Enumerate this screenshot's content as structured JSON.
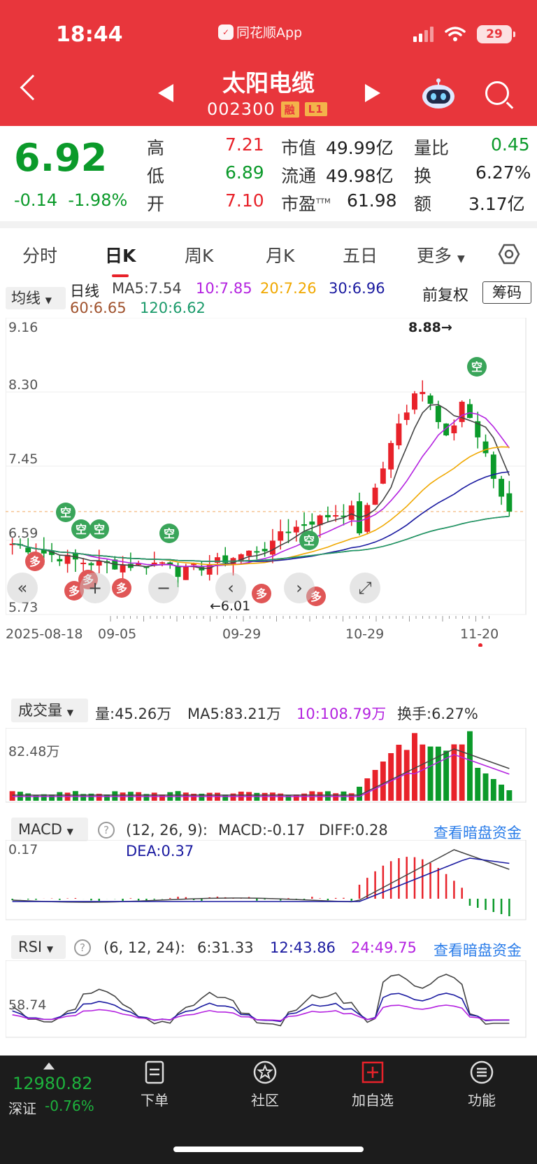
{
  "status_bar": {
    "time": "18:44",
    "app_label": "同花顺App",
    "battery": "29"
  },
  "header": {
    "name": "太阳电缆",
    "code": "002300",
    "tag_margin": "融",
    "tag_level": "L1"
  },
  "quote": {
    "price": "6.92",
    "change": "-0.14",
    "change_pct": "-1.98%",
    "high_label": "高",
    "high": "7.21",
    "low_label": "低",
    "low": "6.89",
    "open_label": "开",
    "open": "7.10",
    "mcap_label": "市值",
    "mcap": "49.99亿",
    "float_label": "流通",
    "float": "49.98亿",
    "pe_label": "市盈",
    "pe_sup": "TTM",
    "pe": "61.98",
    "vol_ratio_label": "量比",
    "vol_ratio": "0.45",
    "turnover_label": "换",
    "turnover": "6.27%",
    "amount_label": "额",
    "amount": "3.17亿"
  },
  "tabs": [
    "分时",
    "日K",
    "周K",
    "月K",
    "五日",
    "更多"
  ],
  "ma_panel": {
    "button": "均线",
    "period": "日线",
    "ma5": "MA5:7.54",
    "ma10": "10:7.85",
    "ma20": "20:7.26",
    "ma30": "30:6.96",
    "ma60": "60:6.65",
    "ma120": "120:6.62",
    "adjust": "前复权",
    "chips": "筹码"
  },
  "kline": {
    "y_ticks": [
      "9.16",
      "8.30",
      "7.45",
      "6.59",
      "5.73"
    ],
    "dates": [
      "2025-08-18",
      "09-05",
      "09-29",
      "10-29",
      "11-20"
    ],
    "max_label": "8.88→",
    "min_label": "←6.01",
    "signal_sell": "空",
    "signal_buy": "多"
  },
  "volume": {
    "button": "成交量",
    "vol": "量:45.26万",
    "ma5": "MA5:83.21万",
    "ma10": "10:108.79万",
    "turnover": "换手:6.27%",
    "y_tick": "82.48万"
  },
  "macd": {
    "button": "MACD",
    "params": "(12, 26, 9):",
    "macd": "MACD:-0.17",
    "diff": "DIFF:0.28",
    "dea": "DEA:0.37",
    "link": "查看暗盘资金",
    "y_tick": "0.17"
  },
  "rsi": {
    "button": "RSI",
    "params": "(6, 12, 24):",
    "rsi6": "6:31.33",
    "rsi12": "12:43.86",
    "rsi24": "24:49.75",
    "link": "查看暗盘资金",
    "y_tick": "58.74"
  },
  "bottom_bar": {
    "index_value": "12980.82",
    "index_name": "深证",
    "index_change": "-0.76%",
    "items": [
      "下单",
      "社区",
      "加自选",
      "功能"
    ]
  },
  "colors": {
    "up": "#e8222a",
    "down": "#0b9a2a",
    "header": "#e8363c",
    "ma5": "#444444",
    "ma10": "#b422e0",
    "ma20": "#f0a800",
    "ma30": "#1a1aa0",
    "ma60": "#a0522d",
    "ma120": "#1a9a6a"
  }
}
